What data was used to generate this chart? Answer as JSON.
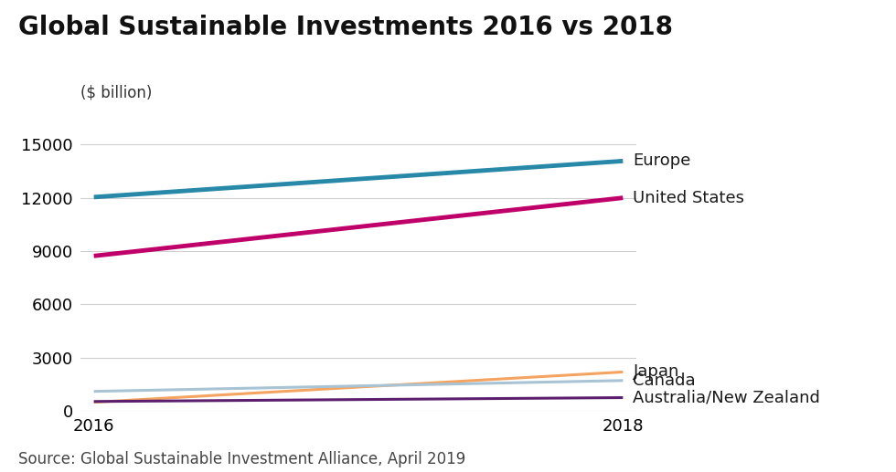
{
  "title": "Global Sustainable Investments 2016 vs 2018",
  "ylabel": "($ billion)",
  "source": "Source: Global Sustainable Investment Alliance, April 2019",
  "x": [
    2016,
    2018
  ],
  "series": [
    {
      "label": "Europe",
      "values": [
        12040,
        14075
      ],
      "color": "#2788a8",
      "linewidth": 3.5
    },
    {
      "label": "United States",
      "values": [
        8723,
        12000
      ],
      "color": "#c0006a",
      "linewidth": 3.5
    },
    {
      "label": "Japan",
      "values": [
        474,
        2180
      ],
      "color": "#f4a460",
      "linewidth": 2.2
    },
    {
      "label": "Canada",
      "values": [
        1086,
        1699
      ],
      "color": "#a8c4d4",
      "linewidth": 2.2
    },
    {
      "label": "Australia/New Zealand",
      "values": [
        516,
        734
      ],
      "color": "#5b1f6e",
      "linewidth": 2.2
    }
  ],
  "ylim": [
    0,
    16500
  ],
  "yticks": [
    0,
    3000,
    6000,
    9000,
    12000,
    15000
  ],
  "xticks": [
    2016,
    2018
  ],
  "title_fontsize": 20,
  "label_fontsize": 13,
  "tick_fontsize": 13,
  "source_fontsize": 12,
  "background_color": "#ffffff",
  "grid_color": "#d0d0d0"
}
